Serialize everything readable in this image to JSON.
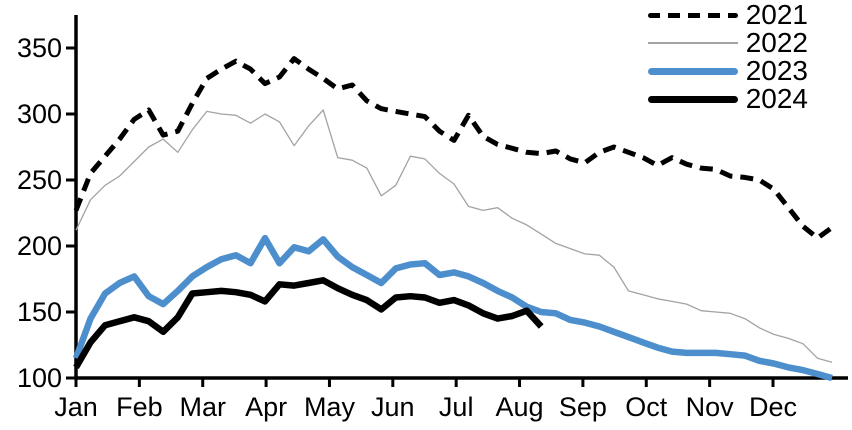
{
  "chart_data": {
    "type": "line",
    "title": "",
    "x_unit": "week",
    "x_axis": {
      "tick_labels": [
        "Jan",
        "Feb",
        "Mar",
        "Apr",
        "May",
        "Jun",
        "Jul",
        "Aug",
        "Sep",
        "Oct",
        "Nov",
        "Dec"
      ]
    },
    "y_axis": {
      "ticks": [
        100,
        150,
        200,
        250,
        300,
        350
      ],
      "range": [
        100,
        375
      ],
      "grid": false
    },
    "legend": {
      "position": "top-right"
    },
    "series": [
      {
        "name": "2021",
        "style": "dashed",
        "color": "#000000",
        "width": 5,
        "values": [
          227,
          255,
          268,
          281,
          296,
          303,
          284,
          287,
          308,
          327,
          334,
          340,
          334,
          323,
          328,
          342,
          334,
          327,
          319,
          322,
          310,
          304,
          302,
          300,
          298,
          287,
          280,
          299,
          283,
          277,
          274,
          271,
          270,
          272,
          266,
          263,
          271,
          275,
          271,
          267,
          261,
          267,
          262,
          259,
          258,
          253,
          252,
          250,
          243,
          229,
          215,
          206,
          214
        ]
      },
      {
        "name": "2022",
        "style": "solid",
        "color": "#a3a3a3",
        "width": 1.3,
        "values": [
          212,
          235,
          246,
          253,
          264,
          275,
          281,
          271,
          288,
          302,
          300,
          299,
          293,
          300,
          294,
          276,
          291,
          303,
          267,
          265,
          259,
          238,
          246,
          268,
          266,
          255,
          247,
          230,
          227,
          229,
          221,
          216,
          209,
          202,
          198,
          194,
          193,
          184,
          166,
          163,
          160,
          158,
          156,
          151,
          150,
          149,
          145,
          138,
          133,
          130,
          126,
          115,
          112
        ]
      },
      {
        "name": "2023",
        "style": "solid",
        "color": "#4d8fcc",
        "width": 6.5,
        "values": [
          115,
          145,
          164,
          172,
          177,
          162,
          156,
          166,
          177,
          184,
          190,
          193,
          187,
          206,
          187,
          199,
          196,
          205,
          192,
          184,
          178,
          172,
          183,
          186,
          187,
          178,
          180,
          177,
          172,
          166,
          161,
          154,
          150,
          149,
          144,
          142,
          139,
          135,
          131,
          127,
          123,
          120,
          119,
          119,
          119,
          118,
          117,
          113,
          111,
          108,
          106,
          103,
          100
        ]
      },
      {
        "name": "2024",
        "style": "solid",
        "color": "#000000",
        "width": 6.5,
        "values": [
          108,
          127,
          140,
          143,
          146,
          143,
          135,
          146,
          164,
          165,
          166,
          165,
          163,
          158,
          171,
          170,
          172,
          174,
          168,
          163,
          159,
          152,
          161,
          162,
          161,
          157,
          159,
          155,
          149,
          145,
          147,
          151,
          139
        ]
      }
    ]
  }
}
